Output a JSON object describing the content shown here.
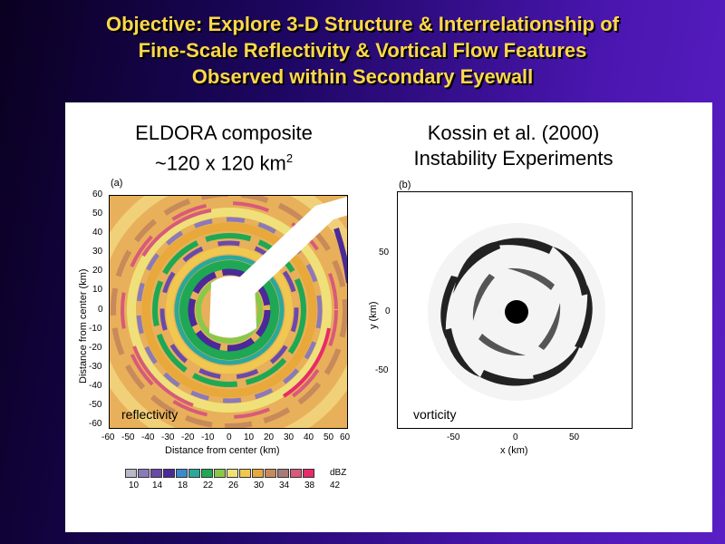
{
  "title": {
    "line1": "Objective:  Explore 3-D Structure & Interrelationship of",
    "line2": "Fine-Scale Reflectivity & Vortical Flow Features",
    "line3": "Observed within Secondary Eyewall"
  },
  "left_panel": {
    "heading_line1": "ELDORA composite",
    "heading_line2": "~120 x 120 km",
    "heading_sup": "2",
    "panel_label": "(a)",
    "corner_label": "reflectivity",
    "x_axis_title": "Distance from center (km)",
    "y_axis_title": "Distance from center (km)",
    "x_ticks": [
      "-60",
      "-50",
      "-40",
      "-30",
      "-20",
      "-10",
      "0",
      "10",
      "20",
      "30",
      "40",
      "50",
      "60"
    ],
    "y_ticks": [
      "60",
      "50",
      "40",
      "30",
      "20",
      "10",
      "0",
      "-10",
      "-20",
      "-30",
      "-40",
      "-50",
      "-60"
    ],
    "colorbar_unit": "dBZ",
    "colorbar_ticks": [
      "10",
      "14",
      "18",
      "22",
      "26",
      "30",
      "34",
      "38",
      "42"
    ],
    "colorbar_colors": [
      "#b8b8c8",
      "#8a7ab8",
      "#6a4aa8",
      "#4a2a98",
      "#3a8acc",
      "#2aa89a",
      "#1ea854",
      "#8ac84a",
      "#f0e07a",
      "#f0c850",
      "#e8a83a",
      "#c88a5a",
      "#a87a7a",
      "#d85a7a",
      "#e82a6a"
    ]
  },
  "right_panel": {
    "heading_line1": "Kossin et al. (2000)",
    "heading_line2": "Instability Experiments",
    "panel_label": "(b)",
    "corner_label": "vorticity",
    "x_axis_title": "x (km)",
    "y_axis_title": "y (km)",
    "x_ticks": [
      "-50",
      "0",
      "50"
    ],
    "y_ticks": [
      "50",
      "0",
      "-50"
    ]
  }
}
